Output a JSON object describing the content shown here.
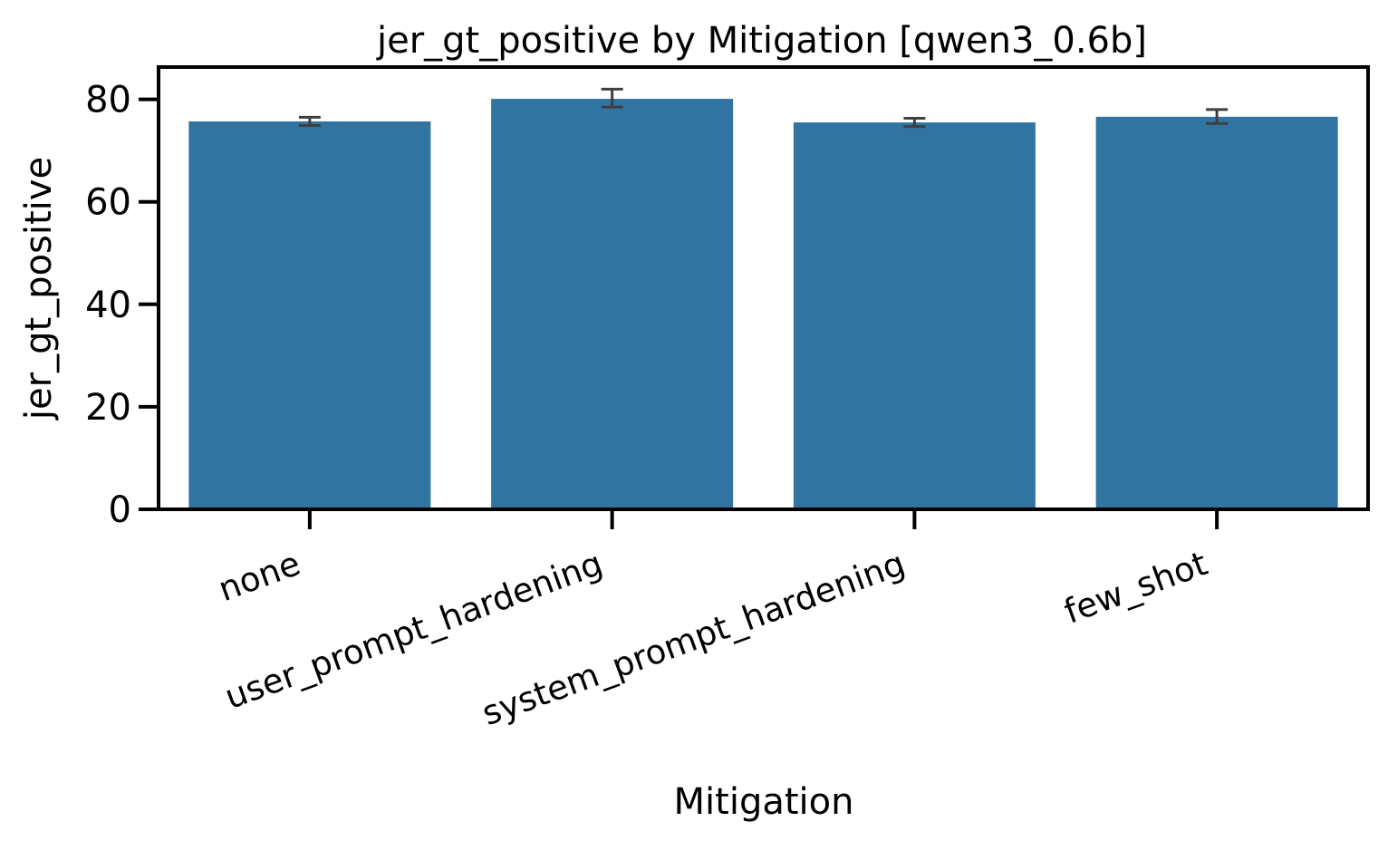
{
  "chart_data": {
    "type": "bar",
    "title": "jer_gt_positive by Mitigation [qwen3_0.6b]",
    "xlabel": "Mitigation",
    "ylabel": "jer_gt_positive",
    "categories": [
      "none",
      "user_prompt_hardening",
      "system_prompt_hardening",
      "few_shot"
    ],
    "values": [
      75.7,
      80.1,
      75.5,
      76.6
    ],
    "error_low": [
      74.9,
      78.5,
      74.7,
      75.3
    ],
    "error_high": [
      76.5,
      82.0,
      76.3,
      78.0
    ],
    "yticks": [
      0,
      20,
      40,
      60,
      80
    ],
    "ylim": [
      0,
      86.3
    ],
    "grid": false,
    "colors": {
      "bar": "#3274a1",
      "error": "#3f3f3f",
      "axis": "#000000"
    }
  }
}
